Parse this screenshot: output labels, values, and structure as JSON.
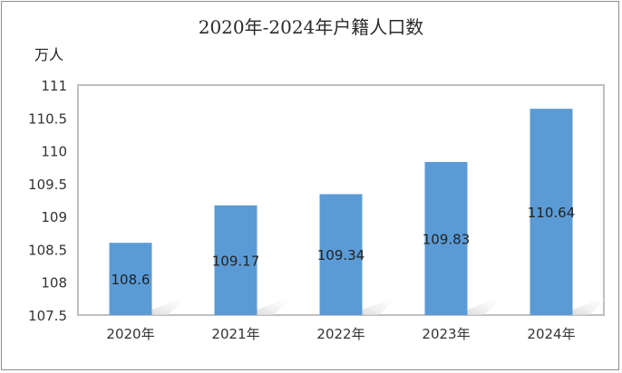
{
  "chart_data": {
    "type": "bar",
    "title": "2020年-2024年户籍人口数",
    "ylabel": "万人",
    "xlabel": "",
    "categories": [
      "2020年",
      "2021年",
      "2022年",
      "2023年",
      "2024年"
    ],
    "values": [
      108.6,
      109.17,
      109.34,
      109.83,
      110.64
    ],
    "value_labels": [
      "108.6",
      "109.17",
      "109.34",
      "109.83",
      "110.64"
    ],
    "ylim": [
      107.5,
      111
    ],
    "yticks": [
      "107.5",
      "108",
      "108.5",
      "109",
      "109.5",
      "110",
      "110.5",
      "111"
    ],
    "ytick_values": [
      107.5,
      108,
      108.5,
      109,
      109.5,
      110,
      110.5,
      111
    ],
    "grid": false,
    "legend": "none",
    "colors": {
      "bar": "#5B9BD5",
      "axis": "#bfbfbf",
      "shadow": "#cfcfcf"
    }
  }
}
